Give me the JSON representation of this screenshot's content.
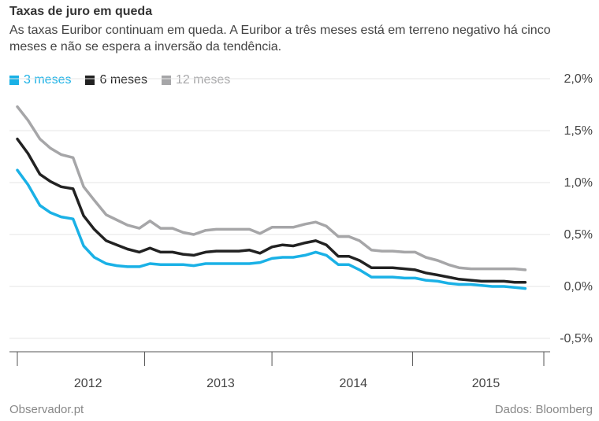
{
  "header": {
    "title": "Taxas de juro em queda",
    "subtitle": "As taxas Euribor continuam em queda. A Euribor a três meses está em terreno negativo há cinco meses e não se espera a inversão da tendência."
  },
  "footer": {
    "source_left": "Observador.pt",
    "source_right": "Dados: Bloomberg"
  },
  "chart_data": {
    "type": "line",
    "title": "Taxas de juro em queda",
    "ylim": [
      -0.5,
      2.0
    ],
    "yticks": [
      {
        "value": 2.0,
        "label": "2,0%"
      },
      {
        "value": 1.5,
        "label": "1,5%"
      },
      {
        "value": 1.0,
        "label": "1,0%"
      },
      {
        "value": 0.5,
        "label": "0,5%"
      },
      {
        "value": 0.0,
        "label": "0,0%"
      },
      {
        "value": -0.5,
        "label": "-0,5%"
      }
    ],
    "x_range": [
      2011.5,
      2015.47
    ],
    "x_boundaries": [
      2011.5,
      2012.46,
      2013.42,
      2014.48,
      2015.47
    ],
    "xticks": [
      {
        "value": 2011.95,
        "label": "2012"
      },
      {
        "value": 2012.95,
        "label": "2013"
      },
      {
        "value": 2013.95,
        "label": "2014"
      },
      {
        "value": 2014.95,
        "label": "2015"
      }
    ],
    "grid": true,
    "legend_position": "top-left",
    "x": [
      2011.5,
      2011.58,
      2011.67,
      2011.75,
      2011.83,
      2011.92,
      2012.0,
      2012.08,
      2012.17,
      2012.25,
      2012.33,
      2012.42,
      2012.5,
      2012.58,
      2012.67,
      2012.75,
      2012.83,
      2012.92,
      2013.0,
      2013.08,
      2013.17,
      2013.25,
      2013.33,
      2013.42,
      2013.5,
      2013.58,
      2013.67,
      2013.75,
      2013.83,
      2013.92,
      2014.0,
      2014.08,
      2014.17,
      2014.25,
      2014.33,
      2014.42,
      2014.5,
      2014.58,
      2014.67,
      2014.75,
      2014.83,
      2014.92,
      2015.0,
      2015.08,
      2015.17,
      2015.25,
      2015.33
    ],
    "series": [
      {
        "name": "3 meses",
        "color": "#1ab1e6",
        "values": [
          1.12,
          0.98,
          0.78,
          0.71,
          0.67,
          0.65,
          0.39,
          0.28,
          0.22,
          0.2,
          0.19,
          0.19,
          0.22,
          0.21,
          0.21,
          0.21,
          0.2,
          0.22,
          0.22,
          0.22,
          0.22,
          0.22,
          0.23,
          0.27,
          0.28,
          0.28,
          0.3,
          0.33,
          0.3,
          0.21,
          0.21,
          0.16,
          0.09,
          0.09,
          0.09,
          0.08,
          0.08,
          0.06,
          0.05,
          0.03,
          0.02,
          0.02,
          0.01,
          0.0,
          0.0,
          -0.01,
          -0.02
        ]
      },
      {
        "name": "6 meses",
        "color": "#222222",
        "values": [
          1.42,
          1.28,
          1.08,
          1.01,
          0.96,
          0.94,
          0.68,
          0.55,
          0.44,
          0.4,
          0.36,
          0.33,
          0.37,
          0.33,
          0.33,
          0.31,
          0.3,
          0.33,
          0.34,
          0.34,
          0.34,
          0.35,
          0.32,
          0.38,
          0.4,
          0.39,
          0.42,
          0.44,
          0.4,
          0.29,
          0.29,
          0.25,
          0.18,
          0.18,
          0.18,
          0.17,
          0.16,
          0.13,
          0.11,
          0.09,
          0.07,
          0.06,
          0.05,
          0.05,
          0.05,
          0.04,
          0.04
        ]
      },
      {
        "name": "12 meses",
        "color": "#a6a6a8",
        "values": [
          1.73,
          1.6,
          1.42,
          1.33,
          1.27,
          1.24,
          0.96,
          0.83,
          0.69,
          0.64,
          0.59,
          0.56,
          0.63,
          0.56,
          0.56,
          0.52,
          0.5,
          0.54,
          0.55,
          0.55,
          0.55,
          0.55,
          0.51,
          0.57,
          0.57,
          0.57,
          0.6,
          0.62,
          0.58,
          0.48,
          0.48,
          0.44,
          0.35,
          0.34,
          0.34,
          0.33,
          0.33,
          0.28,
          0.25,
          0.21,
          0.18,
          0.17,
          0.17,
          0.17,
          0.17,
          0.17,
          0.16
        ]
      }
    ]
  }
}
